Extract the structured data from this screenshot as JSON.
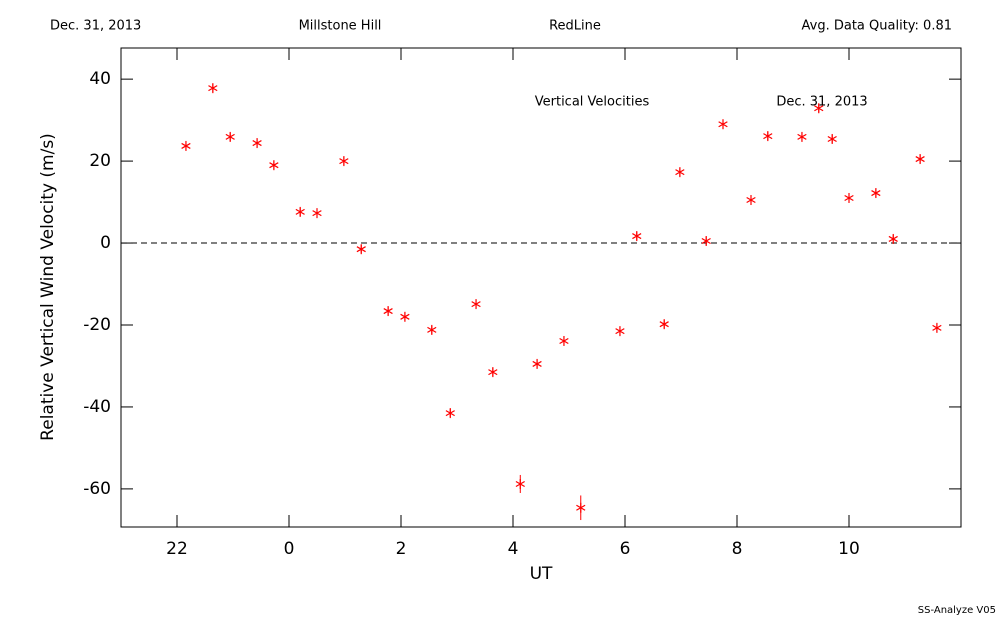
{
  "header": {
    "date": "Dec. 31, 2013",
    "site": "Millstone Hill",
    "filter": "RedLine",
    "quality": "Avg. Data Quality: 0.81"
  },
  "footer": "SS-Analyze V05",
  "chart_data": {
    "type": "scatter",
    "xlabel": "UT",
    "ylabel": "Relative Vertical Wind Velocity (m/s)",
    "annotations": [
      "Vertical Velocities",
      "Dec. 31, 2013"
    ],
    "color": "#ff0000",
    "hline": 0,
    "xlim": [
      -3,
      12
    ],
    "xticks": [
      {
        "value": -2,
        "label": "22"
      },
      0,
      2,
      4,
      6,
      8,
      10
    ],
    "ylim": [
      -69.3,
      47.6
    ],
    "yticks": [
      -60,
      -40,
      -20,
      0,
      20,
      40
    ],
    "x": [
      -1.84,
      -1.36,
      -1.05,
      -0.57,
      -0.27,
      0.2,
      0.5,
      0.98,
      1.29,
      1.77,
      2.07,
      2.55,
      2.88,
      3.34,
      3.64,
      4.13,
      4.43,
      4.91,
      5.21,
      5.91,
      6.21,
      6.7,
      6.98,
      7.45,
      7.75,
      8.25,
      8.55,
      9.16,
      9.46,
      9.7,
      10.0,
      10.48,
      10.79,
      11.27,
      11.57
    ],
    "y": [
      23.7,
      37.8,
      25.9,
      24.4,
      19.0,
      7.6,
      7.3,
      20.0,
      -1.5,
      -16.6,
      -18.0,
      -21.2,
      -41.5,
      -14.9,
      -31.5,
      -58.8,
      -29.5,
      -23.9,
      -64.6,
      -21.5,
      1.7,
      -19.8,
      17.3,
      0.5,
      29.0,
      10.5,
      26.1,
      25.9,
      32.9,
      25.4,
      11.0,
      12.2,
      1.0,
      20.5,
      -20.7
    ],
    "errors": [
      1,
      1,
      1,
      1,
      1,
      1,
      1,
      1,
      1,
      1,
      1,
      1,
      1,
      1,
      1,
      2.2,
      1,
      1,
      3,
      1,
      1,
      1,
      1,
      1,
      1,
      1,
      1,
      1,
      1,
      1,
      1,
      1,
      1,
      1,
      1
    ]
  }
}
